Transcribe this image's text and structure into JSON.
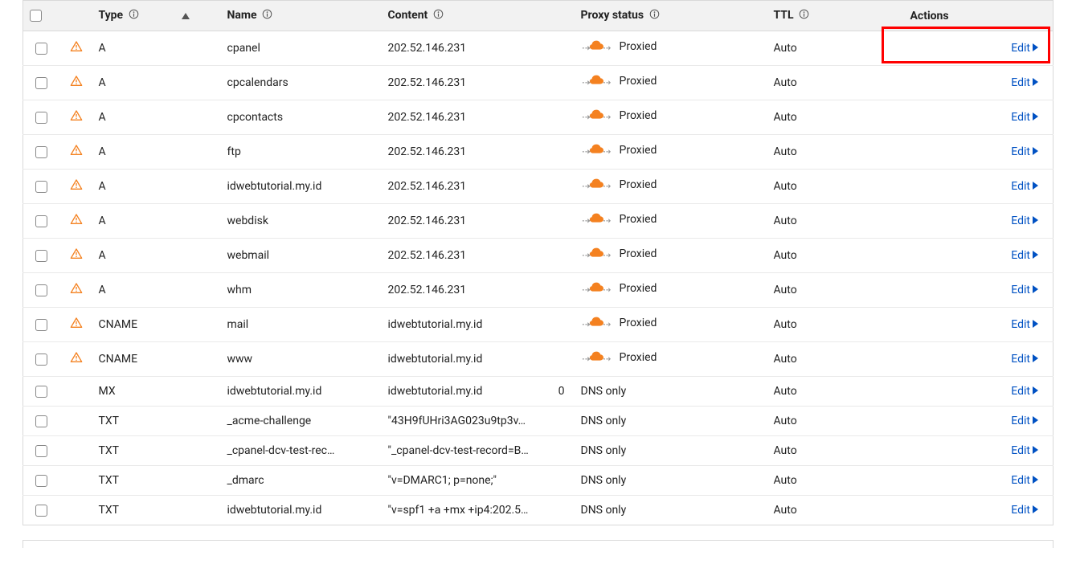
{
  "colors": {
    "accent_blue": "#0051c3",
    "warn_orange": "#f48120",
    "cloud_orange": "#f48120",
    "grey_arrow": "#9a9a9a",
    "border": "#d9d9d9",
    "header_bg": "#f2f2f2",
    "highlight_red": "#ff0000"
  },
  "table": {
    "headers": {
      "type": "Type",
      "name": "Name",
      "content": "Content",
      "proxy_status": "Proxy status",
      "ttl": "TTL",
      "actions": "Actions"
    },
    "edit_label": "Edit",
    "proxy_labels": {
      "proxied": "Proxied",
      "dns_only": "DNS only"
    },
    "rows": [
      {
        "warn": true,
        "type": "A",
        "name": "cpanel",
        "content": "202.52.146.231",
        "priority": "",
        "proxied": true,
        "ttl": "Auto"
      },
      {
        "warn": true,
        "type": "A",
        "name": "cpcalendars",
        "content": "202.52.146.231",
        "priority": "",
        "proxied": true,
        "ttl": "Auto"
      },
      {
        "warn": true,
        "type": "A",
        "name": "cpcontacts",
        "content": "202.52.146.231",
        "priority": "",
        "proxied": true,
        "ttl": "Auto"
      },
      {
        "warn": true,
        "type": "A",
        "name": "ftp",
        "content": "202.52.146.231",
        "priority": "",
        "proxied": true,
        "ttl": "Auto"
      },
      {
        "warn": true,
        "type": "A",
        "name": "idwebtutorial.my.id",
        "content": "202.52.146.231",
        "priority": "",
        "proxied": true,
        "ttl": "Auto"
      },
      {
        "warn": true,
        "type": "A",
        "name": "webdisk",
        "content": "202.52.146.231",
        "priority": "",
        "proxied": true,
        "ttl": "Auto"
      },
      {
        "warn": true,
        "type": "A",
        "name": "webmail",
        "content": "202.52.146.231",
        "priority": "",
        "proxied": true,
        "ttl": "Auto"
      },
      {
        "warn": true,
        "type": "A",
        "name": "whm",
        "content": "202.52.146.231",
        "priority": "",
        "proxied": true,
        "ttl": "Auto"
      },
      {
        "warn": true,
        "type": "CNAME",
        "name": "mail",
        "content": "idwebtutorial.my.id",
        "priority": "",
        "proxied": true,
        "ttl": "Auto"
      },
      {
        "warn": true,
        "type": "CNAME",
        "name": "www",
        "content": "idwebtutorial.my.id",
        "priority": "",
        "proxied": true,
        "ttl": "Auto"
      },
      {
        "warn": false,
        "type": "MX",
        "name": "idwebtutorial.my.id",
        "content": "idwebtutorial.my.id",
        "priority": "0",
        "proxied": false,
        "ttl": "Auto"
      },
      {
        "warn": false,
        "type": "TXT",
        "name": "_acme-challenge",
        "content": "\"43H9fUHri3AG023u9tp3v…",
        "priority": "",
        "proxied": false,
        "ttl": "Auto"
      },
      {
        "warn": false,
        "type": "TXT",
        "name": "_cpanel-dcv-test-rec…",
        "content": "\"_cpanel-dcv-test-record=B…",
        "priority": "",
        "proxied": false,
        "ttl": "Auto"
      },
      {
        "warn": false,
        "type": "TXT",
        "name": "_dmarc",
        "content": "\"v=DMARC1; p=none;\"",
        "priority": "",
        "proxied": false,
        "ttl": "Auto"
      },
      {
        "warn": false,
        "type": "TXT",
        "name": "idwebtutorial.my.id",
        "content": "\"v=spf1 +a +mx +ip4:202.5…",
        "priority": "",
        "proxied": false,
        "ttl": "Auto"
      }
    ]
  },
  "highlight": {
    "row_index": 0,
    "enabled": true
  }
}
